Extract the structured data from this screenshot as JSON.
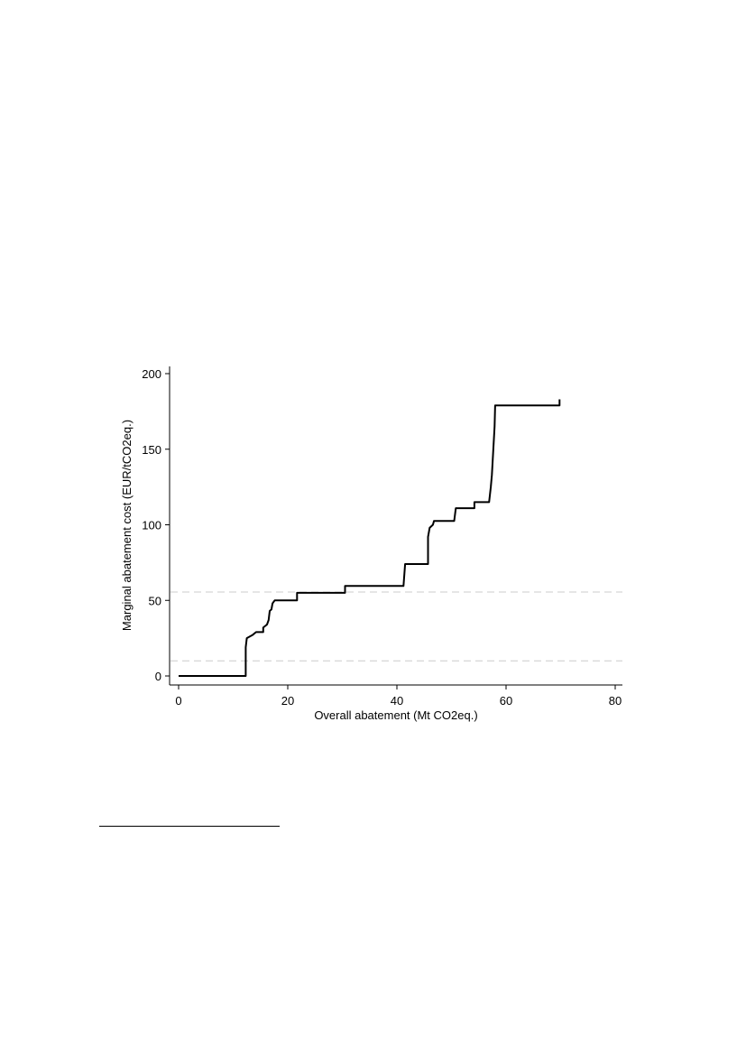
{
  "chart_data": {
    "type": "line",
    "title": "",
    "xlabel": "Overall abatement (Mt CO2eq.)",
    "ylabel": "Marginal abatement cost (EUR/tCO2eq.)",
    "xlim": [
      0,
      80
    ],
    "ylim": [
      0,
      200
    ],
    "x_ticks": [
      0,
      20,
      40,
      60,
      80
    ],
    "y_ticks": [
      0,
      50,
      100,
      150,
      200
    ],
    "grid": false,
    "reference_lines": [
      {
        "axis": "y",
        "value": 10,
        "style": "dashed",
        "color": "#cccccc"
      },
      {
        "axis": "y",
        "value": 55.5,
        "style": "dashed",
        "color": "#cccccc"
      }
    ],
    "series": [
      {
        "color": "#000000",
        "step": true,
        "points": [
          [
            0,
            0
          ],
          [
            12.3,
            0
          ],
          [
            12.3,
            19
          ],
          [
            12.5,
            25
          ],
          [
            13.5,
            27
          ],
          [
            14.2,
            29
          ],
          [
            15.5,
            29
          ],
          [
            15.5,
            32
          ],
          [
            16.2,
            34
          ],
          [
            16.5,
            37
          ],
          [
            16.7,
            43
          ],
          [
            17.0,
            44
          ],
          [
            17.2,
            48
          ],
          [
            17.6,
            50
          ],
          [
            21.7,
            50
          ],
          [
            21.7,
            55
          ],
          [
            30.5,
            55
          ],
          [
            30.5,
            59.5
          ],
          [
            41.2,
            59.5
          ],
          [
            41.5,
            74
          ],
          [
            45.7,
            74
          ],
          [
            45.7,
            92
          ],
          [
            46.0,
            98
          ],
          [
            46.6,
            100
          ],
          [
            46.8,
            102.5
          ],
          [
            50.5,
            102.5
          ],
          [
            50.8,
            111
          ],
          [
            54.2,
            111
          ],
          [
            54.2,
            115
          ],
          [
            56.9,
            115
          ],
          [
            57.2,
            125
          ],
          [
            57.4,
            133
          ],
          [
            57.9,
            165
          ],
          [
            58.0,
            179
          ],
          [
            69.8,
            179
          ],
          [
            69.8,
            183
          ]
        ]
      }
    ]
  }
}
